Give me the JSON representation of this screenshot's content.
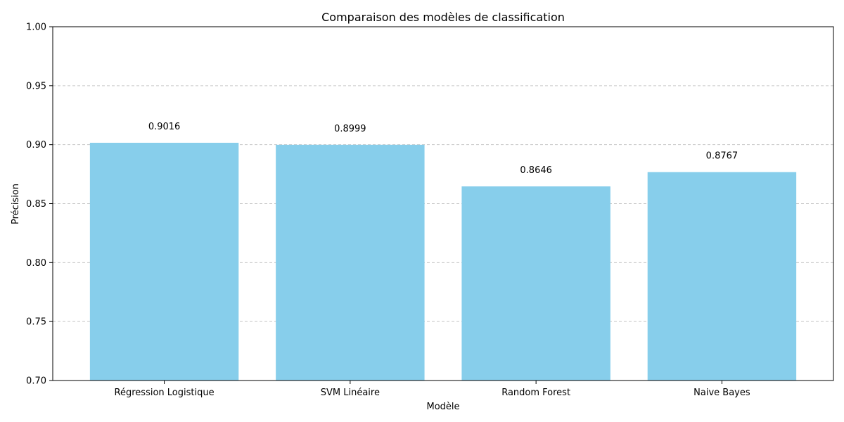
{
  "chart_data": {
    "type": "bar",
    "title": "Comparaison des modèles de classification",
    "xlabel": "Modèle",
    "ylabel": "Précision",
    "categories": [
      "Régression Logistique",
      "SVM Linéaire",
      "Random Forest",
      "Naive Bayes"
    ],
    "values": [
      0.9016,
      0.8999,
      0.8646,
      0.8767
    ],
    "data_labels": [
      "0.9016",
      "0.8999",
      "0.8646",
      "0.8767"
    ],
    "ylim": [
      0.7,
      1.0
    ],
    "yticks": [
      0.7,
      0.75,
      0.8,
      0.85,
      0.9,
      0.95,
      1.0
    ],
    "ytick_labels": [
      "0.70",
      "0.75",
      "0.80",
      "0.85",
      "0.90",
      "0.95",
      "1.00"
    ],
    "grid": "y-dashed",
    "bar_color": "#87ceeb",
    "grid_color": "#c8c8c8"
  }
}
